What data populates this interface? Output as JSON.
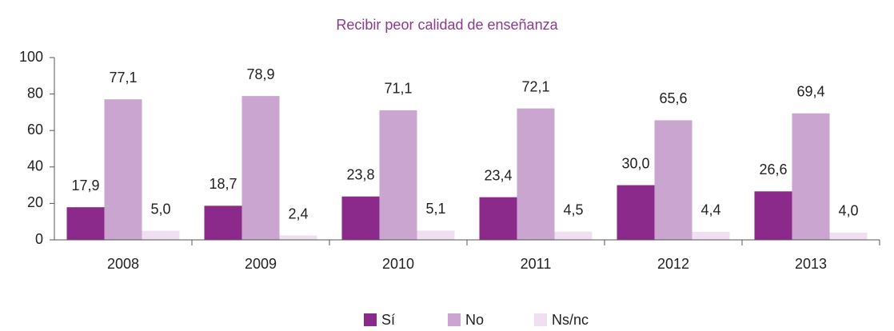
{
  "chart_data": {
    "type": "bar",
    "title": "Recibir peor calidad de enseñanza",
    "categories": [
      "2008",
      "2009",
      "2010",
      "2011",
      "2012",
      "2013"
    ],
    "series": [
      {
        "name": "Sí",
        "color": "#8b2a8b",
        "values": [
          17.9,
          18.7,
          23.8,
          23.4,
          30.0,
          26.6
        ],
        "value_labels": [
          "17,9",
          "18,7",
          "23,8",
          "23,4",
          "30,0",
          "26,6"
        ]
      },
      {
        "name": "No",
        "color": "#c9a5d0",
        "values": [
          77.1,
          78.9,
          71.1,
          72.1,
          65.6,
          69.4
        ],
        "value_labels": [
          "77,1",
          "78,9",
          "71,1",
          "72,1",
          "65,6",
          "69,4"
        ]
      },
      {
        "name": "Ns/nc",
        "color": "#f0dff0",
        "values": [
          5.0,
          2.4,
          5.1,
          4.5,
          4.4,
          4.0
        ],
        "value_labels": [
          "5,0",
          "2,4",
          "5,1",
          "4,5",
          "4,4",
          "4,0"
        ]
      }
    ],
    "ylim": [
      0,
      100
    ],
    "yticks": [
      0,
      20,
      40,
      60,
      80,
      100
    ],
    "grid": false,
    "legend": "bottom"
  }
}
